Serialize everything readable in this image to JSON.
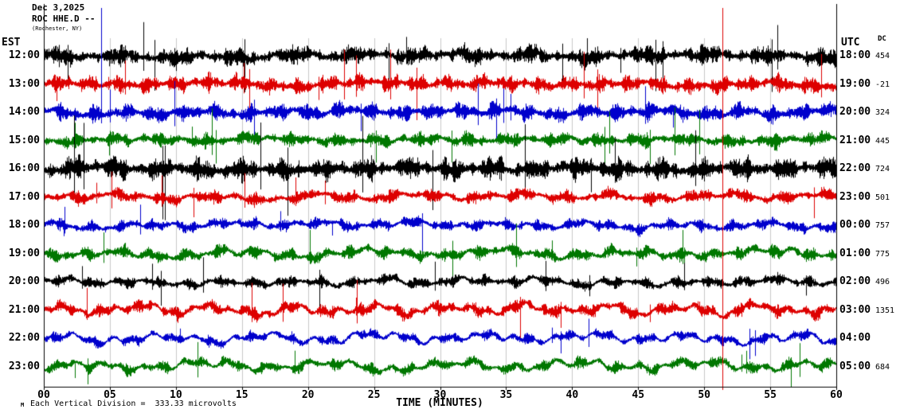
{
  "header": {
    "line1": "Dec 3,2025",
    "line2": "ROC HHE.D --",
    "line3": "(Rochester, NY)"
  },
  "axes": {
    "left": "EST",
    "right": "UTC",
    "dc": "DC",
    "xlabel": "TIME (MINUTES)"
  },
  "footer": {
    "marker": "M",
    "scale_note": "Each Vertical Division =  333.33 microvolts"
  },
  "colors": {
    "black": "#000000",
    "red": "#dd0000",
    "blue": "#0000cc",
    "green": "#007700",
    "grid": "#c8c8c8",
    "axis": "#000000"
  },
  "chart_data": {
    "type": "line",
    "subtype": "seismogram-helicorder",
    "date": "Dec 3,2025",
    "station": "ROC HHE.D --",
    "xlabel": "TIME (MINUTES)",
    "x_range_minutes": [
      0,
      60
    ],
    "x_ticks": [
      "00",
      "05",
      "10",
      "15",
      "20",
      "25",
      "30",
      "35",
      "40",
      "45",
      "50",
      "55",
      "60"
    ],
    "vertical_division_microvolts": 333.33,
    "trace_color_cycle": [
      "black",
      "red",
      "blue",
      "green"
    ],
    "left_axis_label": "EST",
    "right_axis_label": "UTC",
    "rows": [
      {
        "est": "12:00",
        "utc": "18:00",
        "dc": "454",
        "color": "black",
        "amp": 13,
        "wander": 3,
        "spikes": 14
      },
      {
        "est": "13:00",
        "utc": "19:00",
        "dc": "-21",
        "color": "red",
        "amp": 12,
        "wander": 3,
        "spikes": 12
      },
      {
        "est": "14:00",
        "utc": "20:00",
        "dc": "324",
        "color": "blue",
        "amp": 12,
        "wander": 3,
        "spikes": 10
      },
      {
        "est": "15:00",
        "utc": "21:00",
        "dc": "445",
        "color": "green",
        "amp": 10,
        "wander": 3,
        "spikes": 12
      },
      {
        "est": "16:00",
        "utc": "22:00",
        "dc": "724",
        "color": "black",
        "amp": 16,
        "wander": 2,
        "spikes": 12
      },
      {
        "est": "17:00",
        "utc": "23:00",
        "dc": "501",
        "color": "red",
        "amp": 9,
        "wander": 4,
        "spikes": 8
      },
      {
        "est": "18:00",
        "utc": "00:00",
        "dc": "757",
        "color": "blue",
        "amp": 8,
        "wander": 4,
        "spikes": 6
      },
      {
        "est": "19:00",
        "utc": "01:00",
        "dc": "775",
        "color": "green",
        "amp": 9,
        "wander": 5,
        "spikes": 8
      },
      {
        "est": "20:00",
        "utc": "02:00",
        "dc": "496",
        "color": "black",
        "amp": 8,
        "wander": 4,
        "spikes": 10
      },
      {
        "est": "21:00",
        "utc": "03:00",
        "dc": "1351",
        "color": "red",
        "amp": 9,
        "wander": 7,
        "spikes": 8
      },
      {
        "est": "22:00",
        "utc": "04:00",
        "dc": "",
        "color": "blue",
        "amp": 7,
        "wander": 7,
        "spikes": 6
      },
      {
        "est": "23:00",
        "utc": "05:00",
        "dc": "684",
        "color": "green",
        "amp": 8,
        "wander": 7,
        "spikes": 8
      }
    ],
    "event_lines": [
      {
        "minute": 4.35,
        "color": "blue",
        "y_from_frac": 0.01,
        "y_to_frac": 0.3
      },
      {
        "minute": 51.35,
        "color": "red",
        "y_from_frac": 0.01,
        "y_to_frac": 0.97
      }
    ]
  }
}
